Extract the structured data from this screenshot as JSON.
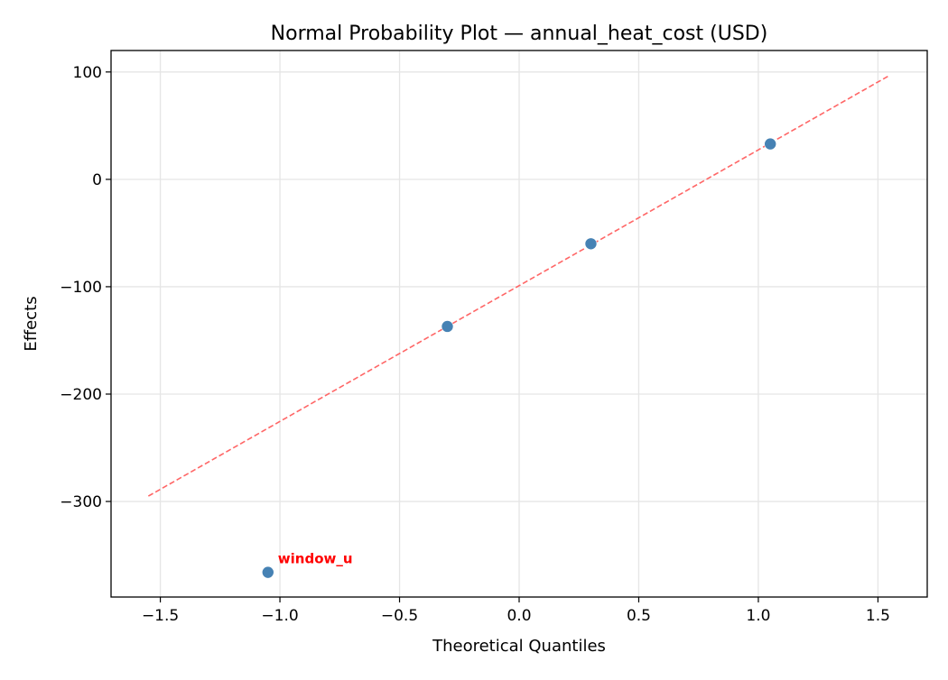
{
  "chart_data": {
    "type": "scatter",
    "title": "Normal Probability Plot — annual_heat_cost (USD)",
    "xlabel": "Theoretical Quantiles",
    "ylabel": "Effects",
    "xlim": [
      -1.706,
      1.706
    ],
    "ylim": [
      -389,
      120
    ],
    "xticks": [
      -1.5,
      -1.0,
      -0.5,
      0.0,
      0.5,
      1.0,
      1.5
    ],
    "xtick_labels": [
      "−1.5",
      "−1.0",
      "−0.5",
      "0.0",
      "0.5",
      "1.0",
      "1.5"
    ],
    "yticks": [
      100,
      0,
      -100,
      -200,
      -300
    ],
    "ytick_labels": [
      "100",
      "0",
      "−100",
      "−200",
      "−300"
    ],
    "grid": true,
    "points": [
      {
        "x": -1.05,
        "y": -366
      },
      {
        "x": -0.3,
        "y": -137
      },
      {
        "x": 0.3,
        "y": -60
      },
      {
        "x": 1.05,
        "y": 33
      }
    ],
    "reference_line": {
      "x": [
        -1.55,
        1.55
      ],
      "y": [
        -295,
        97
      ]
    },
    "annotations": [
      {
        "text": "window_u",
        "x": -1.05,
        "y": -366,
        "color": "#ff0000"
      }
    ],
    "colors": {
      "points": "#4682b4",
      "line": "#ff6666",
      "grid": "#e5e5e5"
    }
  }
}
